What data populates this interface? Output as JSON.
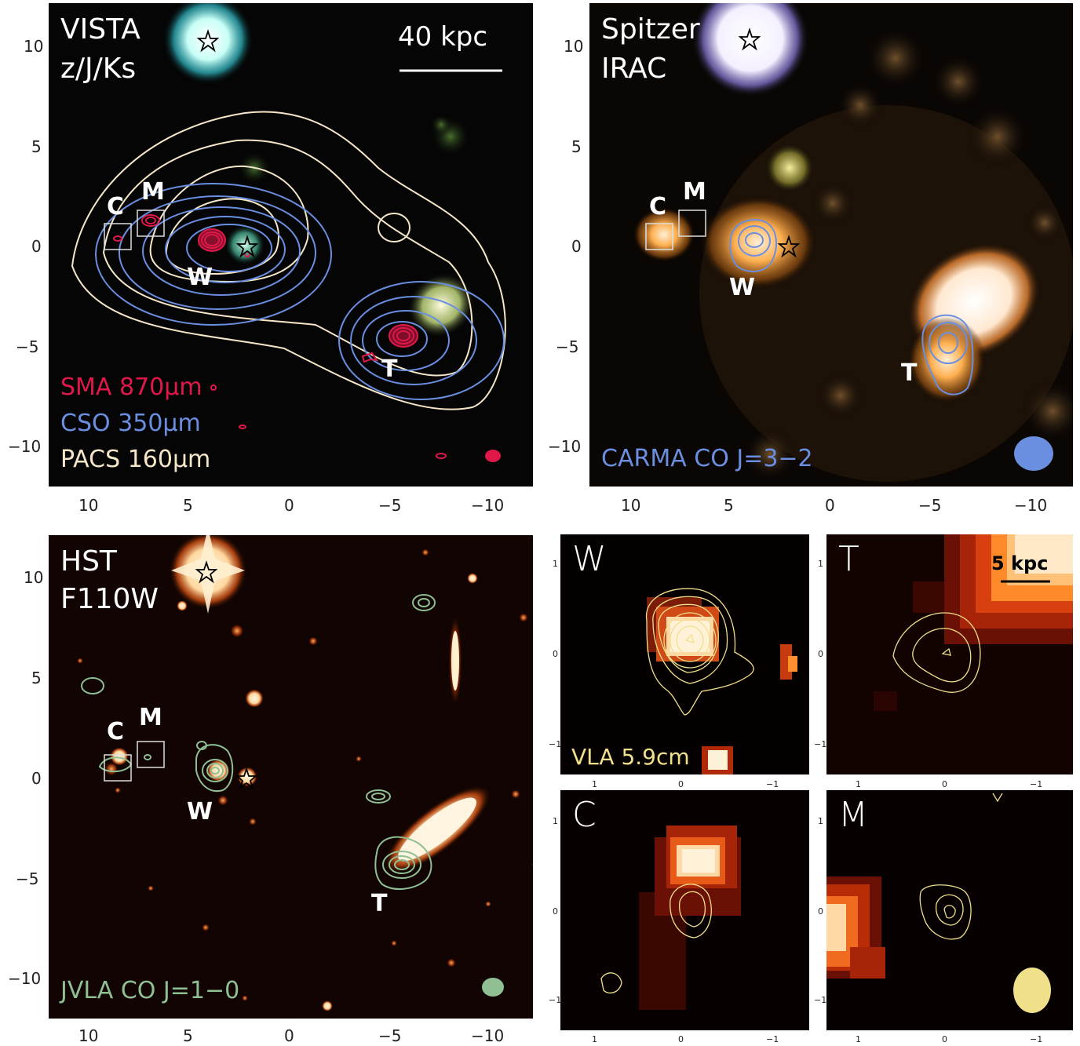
{
  "panels": {
    "vista": {
      "title_line1": "VISTA",
      "title_line2": "z/J/Ks",
      "scale_label": "40 kpc",
      "legend": [
        {
          "text": "SMA 870μm",
          "color": "#e0184a"
        },
        {
          "text": "CSO 350μm",
          "color": "#6a8ee0"
        },
        {
          "text": "PACS 160μm",
          "color": "#f5e6c8"
        }
      ],
      "labels": {
        "c": "C",
        "m": "M",
        "w": "W",
        "t": "T"
      }
    },
    "spitzer": {
      "title_line1": "Spitzer",
      "title_line2": "IRAC",
      "legend": {
        "text": "CARMA CO J=3−2",
        "color": "#6a8ee0"
      },
      "labels": {
        "c": "C",
        "m": "M",
        "w": "W",
        "t": "T"
      }
    },
    "hst": {
      "title_line1": "HST",
      "title_line2": "F110W",
      "legend": {
        "text": "JVLA CO J=1−0",
        "color": "#8fbf92"
      },
      "labels": {
        "c": "C",
        "m": "M",
        "w": "W",
        "t": "T"
      }
    },
    "zoom_w": {
      "title": "W",
      "legend": {
        "text": "VLA 5.9cm",
        "color": "#f0e08a"
      }
    },
    "zoom_t": {
      "title": "T",
      "scale_label": "5 kpc"
    },
    "zoom_c": {
      "title": "C"
    },
    "zoom_m": {
      "title": "M"
    }
  },
  "axes": {
    "big_y_ticks": [
      "10",
      "5",
      "0",
      "−5",
      "−10"
    ],
    "big_x_ticks": [
      "10",
      "5",
      "0",
      "−5",
      "−10"
    ],
    "small_ticks": [
      "1",
      "0",
      "−1"
    ]
  },
  "colors": {
    "sma": "#e0184a",
    "cso": "#6a8ee0",
    "pacs": "#f5e6c8",
    "carma": "#6a8ee0",
    "jvla": "#8fbf92",
    "vla": "#f0e08a"
  }
}
